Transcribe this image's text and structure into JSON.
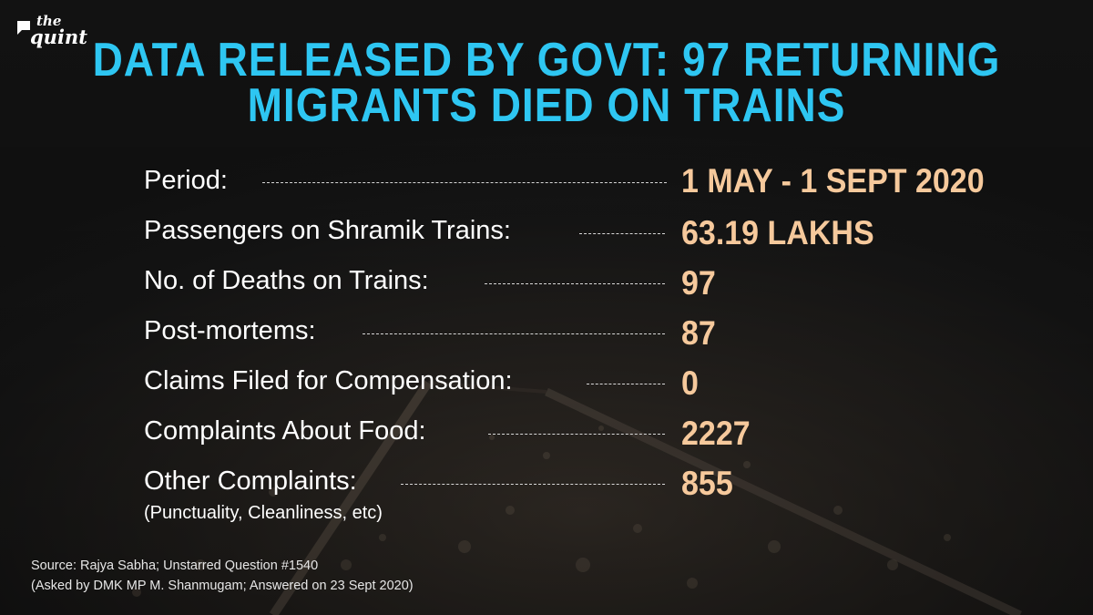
{
  "brand": {
    "name": "the quint",
    "the": "the",
    "quint": "quint"
  },
  "title": {
    "line1": "DATA RELEASED BY GOVT: 97 RETURNING",
    "line2": "MIGRANTS DIED ON TRAINS"
  },
  "rows": [
    {
      "label": "Period:",
      "value": "1 MAY - 1 SEPT 2020"
    },
    {
      "label": "Passengers on Shramik Trains:",
      "value": "63.19 LAKHS"
    },
    {
      "label": "No. of Deaths on Trains:",
      "value": "97"
    },
    {
      "label": "Post-mortems:",
      "value": "87"
    },
    {
      "label": "Claims Filed for Compensation:",
      "value": "0"
    },
    {
      "label": "Complaints About Food:",
      "value": "2227"
    },
    {
      "label": "Other Complaints:",
      "sublabel": "(Punctuality, Cleanliness, etc)",
      "value": "855"
    }
  ],
  "source": {
    "line1": "Source: Rajya Sabha; Unstarred Question #1540",
    "line2": "(Asked by DMK MP M. Shanmugam; Answered on 23 Sept 2020)"
  },
  "colors": {
    "title": "#2ec6f2",
    "value": "#f6c99c",
    "label": "#ffffff",
    "background": "#161616"
  }
}
